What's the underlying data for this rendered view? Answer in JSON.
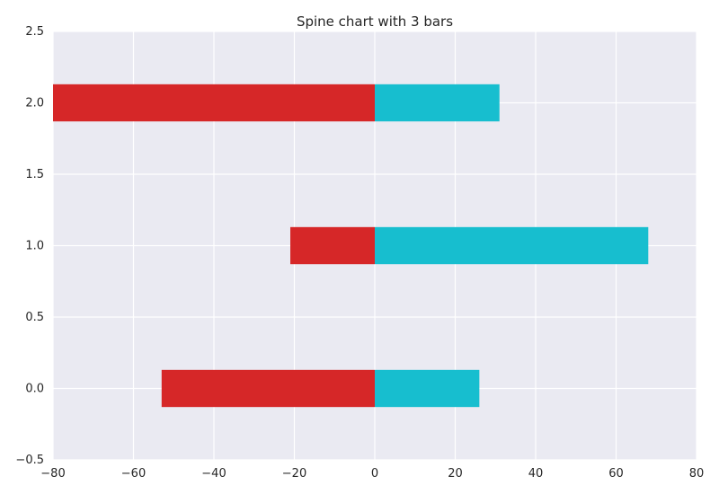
{
  "chart_data": {
    "type": "bar",
    "orientation": "horizontal",
    "title": "Spine chart with 3 bars",
    "xlabel": "",
    "ylabel": "",
    "xlim": [
      -80,
      80
    ],
    "ylim": [
      -0.5,
      2.5
    ],
    "x_ticks": [
      "−80",
      "−60",
      "−40",
      "−20",
      "0",
      "20",
      "40",
      "60",
      "80"
    ],
    "y_ticks": [
      "−0.5",
      "0.0",
      "0.5",
      "1.0",
      "1.5",
      "2.0",
      "2.5"
    ],
    "y_positions": [
      0,
      1,
      2
    ],
    "series": [
      {
        "values": [
          -53,
          -21,
          -80
        ],
        "color": "#d62728"
      },
      {
        "values": [
          26,
          68,
          31
        ],
        "color": "#17becf"
      }
    ],
    "background_color": "#eaeaf2",
    "grid": true,
    "grid_color": "#ffffff"
  }
}
